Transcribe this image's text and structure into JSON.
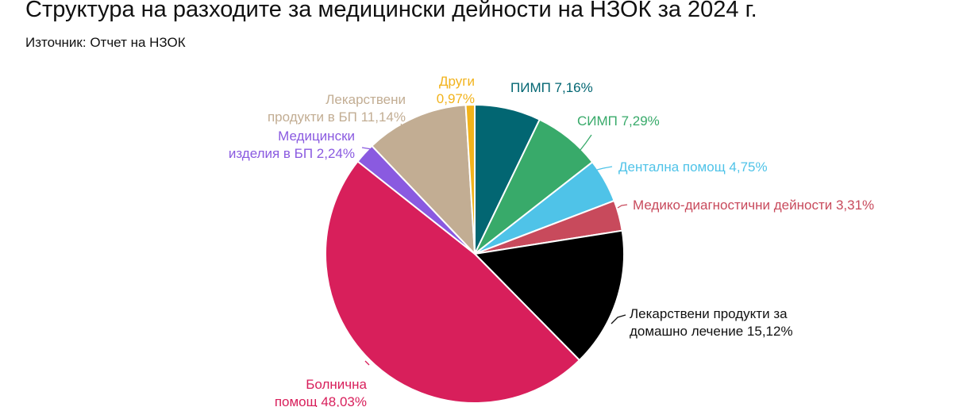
{
  "title": "Структура на разходите за медицински дейности на НЗОК за 2024 г.",
  "subtitle": "Източник: Отчет на НЗОК",
  "chart_data": {
    "type": "pie",
    "title": "Структура на разходите за медицински дейности на НЗОК за 2024 г.",
    "start_angle_deg": 0,
    "direction": "clockwise",
    "slices": [
      {
        "label_lines": [
          "ПИМП 7,16%"
        ],
        "value": 7.16,
        "color": "#026672"
      },
      {
        "label_lines": [
          "СИМП 7,29%"
        ],
        "value": 7.29,
        "color": "#38aa6a"
      },
      {
        "label_lines": [
          "Дентална помощ 4,75%"
        ],
        "value": 4.75,
        "color": "#4fc3e8"
      },
      {
        "label_lines": [
          "Медико-диагностични дейности 3,31%"
        ],
        "value": 3.31,
        "color": "#c84a5c"
      },
      {
        "label_lines": [
          "Лекарствени продукти за",
          "домашно лечение 15,12%"
        ],
        "value": 15.12,
        "color": "#000000",
        "label_color": "#111111"
      },
      {
        "label_lines": [
          "Болнична",
          "помощ 48,03%"
        ],
        "value": 48.03,
        "color": "#d81f5b"
      },
      {
        "label_lines": [
          "Медицински",
          "изделия в БП 2,24%"
        ],
        "value": 2.24,
        "color": "#8a5ae0"
      },
      {
        "label_lines": [
          "Лекарствени",
          "продукти в БП 11,14%"
        ],
        "value": 11.14,
        "color": "#c2ad93"
      },
      {
        "label_lines": [
          "Други",
          "0,97%"
        ],
        "value": 0.97,
        "color": "#f2b31c"
      }
    ]
  }
}
